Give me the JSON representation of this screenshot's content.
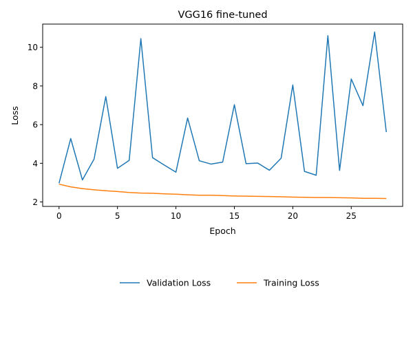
{
  "chart_data": {
    "type": "line",
    "title": "VGG16 fine-tuned",
    "xlabel": "Epoch",
    "ylabel": "Loss",
    "xlim": [
      -1.4,
      29.4
    ],
    "ylim": [
      1.77,
      11.2
    ],
    "xticks": [
      0,
      5,
      10,
      15,
      20,
      25
    ],
    "yticks": [
      2,
      4,
      6,
      8,
      10
    ],
    "grid": false,
    "legend_position": "bottom-center",
    "x": [
      0,
      1,
      2,
      3,
      4,
      5,
      6,
      7,
      8,
      9,
      10,
      11,
      12,
      13,
      14,
      15,
      16,
      17,
      18,
      19,
      20,
      21,
      22,
      23,
      24,
      25,
      26,
      27,
      28
    ],
    "series": [
      {
        "name": "Validation Loss",
        "color": "#1f77b4",
        "values": [
          2.97,
          5.28,
          3.14,
          4.22,
          7.45,
          3.74,
          4.15,
          10.45,
          4.29,
          3.91,
          3.54,
          6.34,
          4.13,
          3.96,
          4.06,
          7.03,
          3.98,
          4.01,
          3.64,
          4.26,
          8.05,
          3.58,
          3.38,
          10.6,
          3.63,
          8.36,
          6.98,
          10.79,
          5.61
        ]
      },
      {
        "name": "Training Loss",
        "color": "#ff7f0e",
        "values": [
          2.92,
          2.78,
          2.69,
          2.63,
          2.58,
          2.54,
          2.49,
          2.46,
          2.45,
          2.42,
          2.4,
          2.37,
          2.35,
          2.35,
          2.33,
          2.31,
          2.3,
          2.29,
          2.28,
          2.27,
          2.25,
          2.24,
          2.23,
          2.23,
          2.22,
          2.21,
          2.19,
          2.19,
          2.18
        ]
      }
    ]
  }
}
